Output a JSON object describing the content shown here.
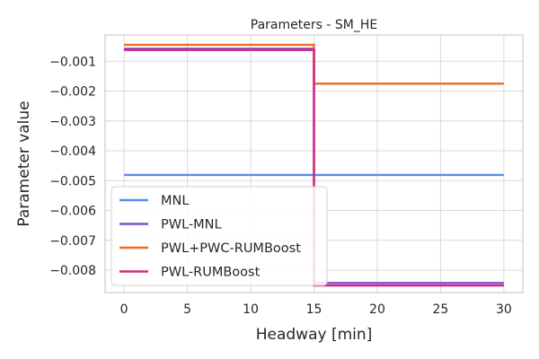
{
  "chart_data": {
    "type": "line",
    "title": "Parameters - SM_HE",
    "xlabel": "Headway [min]",
    "ylabel": "Parameter value",
    "xlim": [
      -1.5,
      31.5
    ],
    "ylim": [
      -0.00875,
      -0.00012
    ],
    "xticks": [
      0,
      5,
      10,
      15,
      20,
      25,
      30
    ],
    "xtick_labels": [
      "0",
      "5",
      "10",
      "15",
      "20",
      "25",
      "30"
    ],
    "yticks": [
      -0.001,
      -0.002,
      -0.003,
      -0.004,
      -0.005,
      -0.006,
      -0.007,
      -0.008
    ],
    "ytick_labels": [
      "−0.001",
      "−0.002",
      "−0.003",
      "−0.004",
      "−0.005",
      "−0.006",
      "−0.007",
      "−0.008"
    ],
    "grid": true,
    "legend_position": "lower-left",
    "series": [
      {
        "name": "MNL",
        "color": "#5b8def",
        "x": [
          0,
          30
        ],
        "y": [
          -0.00481,
          -0.00481
        ]
      },
      {
        "name": "PWL-MNL",
        "color": "#7b52d6",
        "x": [
          0,
          15,
          15,
          30
        ],
        "y": [
          -0.00058,
          -0.00058,
          -0.00843,
          -0.00843
        ]
      },
      {
        "name": "PWL+PWC-RUMBoost",
        "color": "#f26b1d",
        "x": [
          0,
          15,
          15,
          30
        ],
        "y": [
          -0.00045,
          -0.00045,
          -0.00175,
          -0.00175
        ]
      },
      {
        "name": "PWL-RUMBoost",
        "color": "#d6247e",
        "x": [
          0,
          15,
          15,
          30
        ],
        "y": [
          -0.00062,
          -0.00062,
          -0.00851,
          -0.00851
        ]
      }
    ]
  }
}
